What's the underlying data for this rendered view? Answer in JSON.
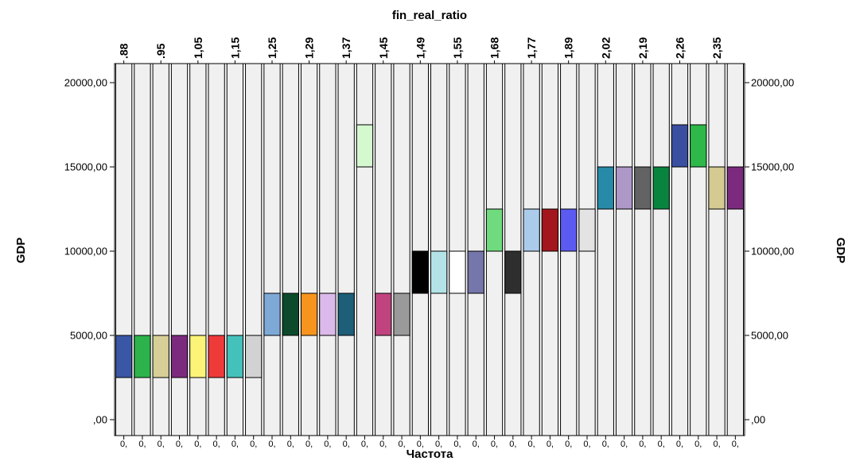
{
  "chart_data": {
    "type": "heatmap",
    "title": "fin_real_ratio",
    "ylabel_left": "GDP",
    "ylabel_right": "GDP",
    "xlabel": "Частота",
    "x_tick_label": "0,",
    "ylim": [
      -1000,
      22000
    ],
    "y_ticks": [
      0,
      5000,
      10000,
      15000,
      20000
    ],
    "y_tick_labels": [
      ",00",
      "5000,00",
      "10000,00",
      "15000,00",
      "20000,00"
    ],
    "top_labels": [
      ".88",
      ".95",
      "1,05",
      "1,15",
      "1,25",
      "1,29",
      "1,37",
      "1,45",
      "1,49",
      "1,55",
      "1,68",
      "1,77",
      "1,89",
      "2,02",
      "2,19",
      "2,26",
      "2,35"
    ],
    "column_count": 34,
    "column_background": "#f0f0f0",
    "cells": [
      {
        "col": 0,
        "y0": 2500,
        "y1": 5000,
        "color": "#3a57a5"
      },
      {
        "col": 1,
        "y0": 2500,
        "y1": 5000,
        "color": "#2db34b"
      },
      {
        "col": 2,
        "y0": 2500,
        "y1": 5000,
        "color": "#d6d098"
      },
      {
        "col": 3,
        "y0": 2500,
        "y1": 5000,
        "color": "#7c2a7e"
      },
      {
        "col": 4,
        "y0": 2500,
        "y1": 5000,
        "color": "#fbf479"
      },
      {
        "col": 5,
        "y0": 2500,
        "y1": 5000,
        "color": "#ef3a3a"
      },
      {
        "col": 6,
        "y0": 2500,
        "y1": 5000,
        "color": "#45c1bc"
      },
      {
        "col": 7,
        "y0": 2500,
        "y1": 5000,
        "color": "#d2d2d2"
      },
      {
        "col": 8,
        "y0": 5000,
        "y1": 7500,
        "color": "#7ea9d7"
      },
      {
        "col": 9,
        "y0": 5000,
        "y1": 7500,
        "color": "#0d4a2c"
      },
      {
        "col": 10,
        "y0": 5000,
        "y1": 7500,
        "color": "#f7941d"
      },
      {
        "col": 11,
        "y0": 5000,
        "y1": 7500,
        "color": "#dbb9ea"
      },
      {
        "col": 12,
        "y0": 5000,
        "y1": 7500,
        "color": "#1d5e78"
      },
      {
        "col": 13,
        "y0": 15000,
        "y1": 17500,
        "color": "#d4f9cf"
      },
      {
        "col": 14,
        "y0": 5000,
        "y1": 7500,
        "color": "#c0437f"
      },
      {
        "col": 15,
        "y0": 5000,
        "y1": 7500,
        "color": "#9a9a9a"
      },
      {
        "col": 16,
        "y0": 7500,
        "y1": 10000,
        "color": "#000000"
      },
      {
        "col": 17,
        "y0": 7500,
        "y1": 10000,
        "color": "#b3e3e6"
      },
      {
        "col": 18,
        "y0": 7500,
        "y1": 10000,
        "color": "#ffffff"
      },
      {
        "col": 19,
        "y0": 7500,
        "y1": 10000,
        "color": "#7576a9"
      },
      {
        "col": 20,
        "y0": 10000,
        "y1": 12500,
        "color": "#70da7e"
      },
      {
        "col": 21,
        "y0": 7500,
        "y1": 10000,
        "color": "#2e2e2e"
      },
      {
        "col": 22,
        "y0": 10000,
        "y1": 12500,
        "color": "#abcbeb"
      },
      {
        "col": 23,
        "y0": 10000,
        "y1": 12500,
        "color": "#a3161d"
      },
      {
        "col": 24,
        "y0": 10000,
        "y1": 12500,
        "color": "#5b5bf2"
      },
      {
        "col": 25,
        "y0": 10000,
        "y1": 12500,
        "color": "#e3e3e3"
      },
      {
        "col": 26,
        "y0": 12500,
        "y1": 15000,
        "color": "#268aa8"
      },
      {
        "col": 27,
        "y0": 12500,
        "y1": 15000,
        "color": "#ae98c8"
      },
      {
        "col": 28,
        "y0": 12500,
        "y1": 15000,
        "color": "#636363"
      },
      {
        "col": 29,
        "y0": 12500,
        "y1": 15000,
        "color": "#08843e"
      },
      {
        "col": 30,
        "y0": 15000,
        "y1": 17500,
        "color": "#3a4fa0"
      },
      {
        "col": 31,
        "y0": 15000,
        "y1": 17500,
        "color": "#2eb84a"
      },
      {
        "col": 32,
        "y0": 12500,
        "y1": 15000,
        "color": "#d4ca92"
      },
      {
        "col": 33,
        "y0": 12500,
        "y1": 15000,
        "color": "#7c2a7e"
      }
    ]
  }
}
